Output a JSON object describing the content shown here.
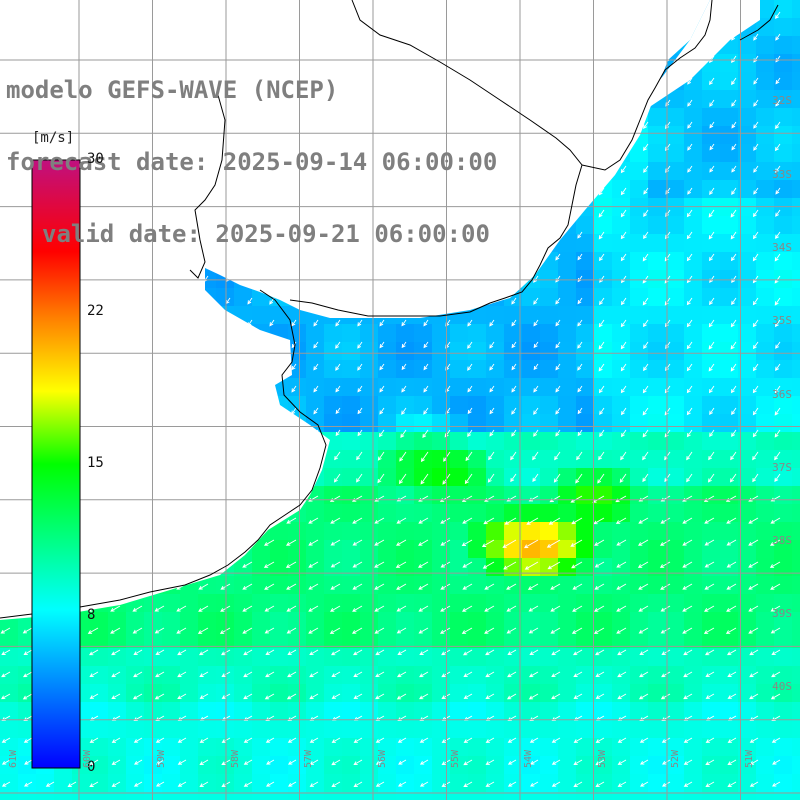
{
  "title": {
    "line1": "modelo GEFS-WAVE (NCEP)",
    "line2": "forecast date: 2025-09-14 06:00:00",
    "line3": "valid date: 2025-09-21 06:00:00"
  },
  "colorbar": {
    "unit": "[m/s]",
    "ticks": [
      "30",
      "22",
      "15",
      "8",
      "0"
    ],
    "tick_values": [
      30,
      22,
      15,
      8,
      0
    ],
    "range": [
      0,
      30
    ]
  },
  "lat_labels": [
    "32S",
    "33S",
    "34S",
    "35S",
    "36S",
    "37S",
    "38S",
    "39S",
    "40S"
  ],
  "lon_labels": [
    "61W",
    "60W",
    "59W",
    "58W",
    "57W",
    "56W",
    "55W",
    "54W",
    "53W",
    "52W",
    "51W"
  ],
  "colors": {
    "grid": "#9a9a9a",
    "coast": "#000000",
    "arrow": "#ffffff",
    "title_text": "#7f7f7f"
  },
  "chart_data": {
    "type": "heatmap",
    "variable": "wind speed",
    "unit": "m/s",
    "value_range": [
      0,
      30
    ],
    "hotspots": [
      {
        "lon": -53.8,
        "lat": -38.1,
        "value": 20
      },
      {
        "lon": -55.2,
        "lat": -37.1,
        "value": 15
      },
      {
        "lon": -53.0,
        "lat": -37.5,
        "value": 15
      }
    ]
  }
}
